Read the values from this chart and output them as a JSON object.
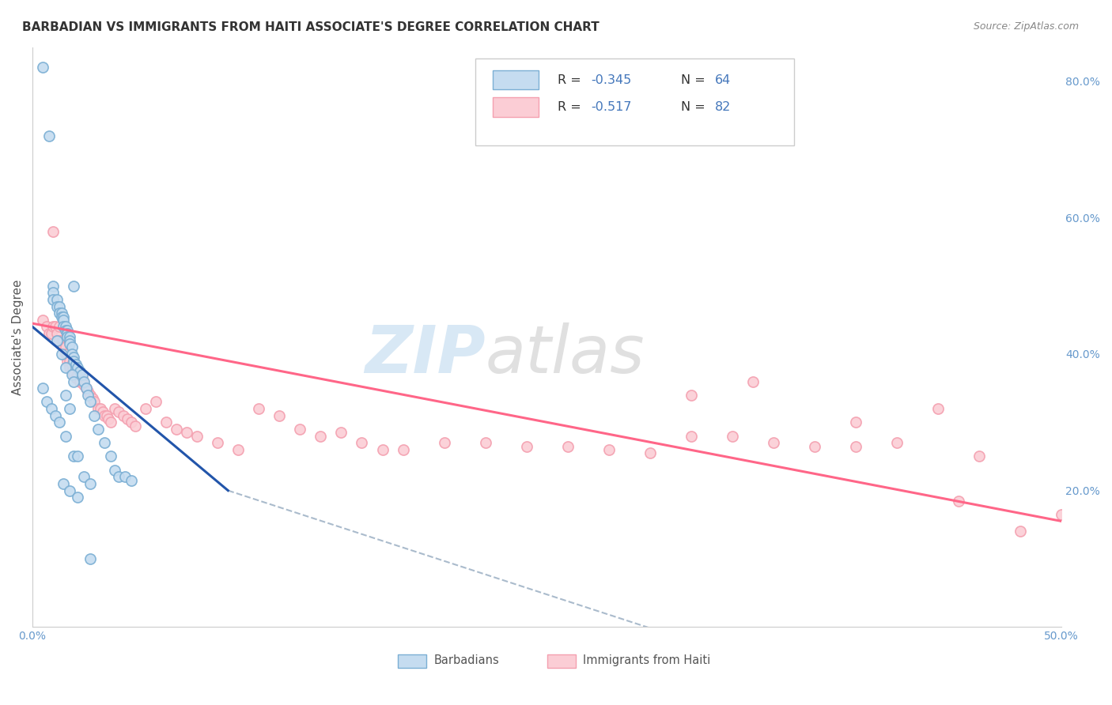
{
  "title": "BARBADIAN VS IMMIGRANTS FROM HAITI ASSOCIATE'S DEGREE CORRELATION CHART",
  "source": "Source: ZipAtlas.com",
  "xlabel_label": "Barbadians",
  "xlabel_label2": "Immigrants from Haiti",
  "ylabel": "Associate's Degree",
  "xlim": [
    0.0,
    0.5
  ],
  "ylim": [
    0.0,
    0.85
  ],
  "blue_color": "#7BAFD4",
  "pink_color": "#F4A0B0",
  "blue_fill": "#C5DCF0",
  "pink_fill": "#FBCDD5",
  "text_color": "#4477BB",
  "background": "#FFFFFF",
  "blue_scatter_x": [
    0.005,
    0.008,
    0.01,
    0.01,
    0.01,
    0.012,
    0.012,
    0.013,
    0.013,
    0.014,
    0.014,
    0.015,
    0.015,
    0.015,
    0.016,
    0.016,
    0.017,
    0.017,
    0.017,
    0.018,
    0.018,
    0.018,
    0.019,
    0.019,
    0.02,
    0.02,
    0.021,
    0.022,
    0.023,
    0.024,
    0.025,
    0.026,
    0.027,
    0.028,
    0.03,
    0.032,
    0.035,
    0.038,
    0.04,
    0.042,
    0.045,
    0.048,
    0.005,
    0.007,
    0.009,
    0.011,
    0.013,
    0.016,
    0.02,
    0.025,
    0.028,
    0.015,
    0.018,
    0.022,
    0.012,
    0.014,
    0.016,
    0.019,
    0.02,
    0.016,
    0.018,
    0.022,
    0.028,
    0.02
  ],
  "blue_scatter_y": [
    0.82,
    0.72,
    0.5,
    0.49,
    0.48,
    0.48,
    0.47,
    0.47,
    0.46,
    0.46,
    0.455,
    0.455,
    0.45,
    0.44,
    0.44,
    0.435,
    0.435,
    0.43,
    0.425,
    0.425,
    0.42,
    0.415,
    0.41,
    0.4,
    0.395,
    0.39,
    0.385,
    0.38,
    0.375,
    0.37,
    0.36,
    0.35,
    0.34,
    0.33,
    0.31,
    0.29,
    0.27,
    0.25,
    0.23,
    0.22,
    0.22,
    0.215,
    0.35,
    0.33,
    0.32,
    0.31,
    0.3,
    0.28,
    0.25,
    0.22,
    0.21,
    0.21,
    0.2,
    0.19,
    0.42,
    0.4,
    0.38,
    0.37,
    0.36,
    0.34,
    0.32,
    0.25,
    0.1,
    0.5
  ],
  "pink_scatter_x": [
    0.005,
    0.007,
    0.008,
    0.009,
    0.01,
    0.011,
    0.012,
    0.012,
    0.013,
    0.013,
    0.014,
    0.015,
    0.015,
    0.016,
    0.016,
    0.017,
    0.017,
    0.018,
    0.018,
    0.019,
    0.019,
    0.02,
    0.021,
    0.022,
    0.023,
    0.024,
    0.025,
    0.026,
    0.027,
    0.028,
    0.029,
    0.03,
    0.032,
    0.033,
    0.034,
    0.035,
    0.036,
    0.037,
    0.038,
    0.04,
    0.042,
    0.044,
    0.046,
    0.048,
    0.05,
    0.055,
    0.06,
    0.065,
    0.07,
    0.075,
    0.08,
    0.09,
    0.1,
    0.11,
    0.12,
    0.13,
    0.14,
    0.15,
    0.16,
    0.17,
    0.18,
    0.2,
    0.22,
    0.24,
    0.26,
    0.28,
    0.3,
    0.32,
    0.34,
    0.36,
    0.38,
    0.4,
    0.42,
    0.44,
    0.46,
    0.5,
    0.32,
    0.35,
    0.4,
    0.45,
    0.48,
    0.01
  ],
  "pink_scatter_y": [
    0.45,
    0.44,
    0.43,
    0.43,
    0.44,
    0.44,
    0.43,
    0.42,
    0.44,
    0.42,
    0.42,
    0.42,
    0.41,
    0.41,
    0.4,
    0.4,
    0.39,
    0.39,
    0.38,
    0.385,
    0.375,
    0.37,
    0.365,
    0.37,
    0.36,
    0.365,
    0.355,
    0.35,
    0.345,
    0.34,
    0.335,
    0.33,
    0.32,
    0.32,
    0.315,
    0.31,
    0.31,
    0.305,
    0.3,
    0.32,
    0.315,
    0.31,
    0.305,
    0.3,
    0.295,
    0.32,
    0.33,
    0.3,
    0.29,
    0.285,
    0.28,
    0.27,
    0.26,
    0.32,
    0.31,
    0.29,
    0.28,
    0.285,
    0.27,
    0.26,
    0.26,
    0.27,
    0.27,
    0.265,
    0.265,
    0.26,
    0.255,
    0.28,
    0.28,
    0.27,
    0.265,
    0.265,
    0.27,
    0.32,
    0.25,
    0.165,
    0.34,
    0.36,
    0.3,
    0.185,
    0.14,
    0.58
  ],
  "blue_line_x": [
    0.0,
    0.095
  ],
  "blue_line_y": [
    0.44,
    0.2
  ],
  "pink_line_x": [
    0.0,
    0.5
  ],
  "pink_line_y": [
    0.445,
    0.155
  ],
  "grey_line_x": [
    0.095,
    0.4
  ],
  "grey_line_y": [
    0.2,
    -0.1
  ]
}
